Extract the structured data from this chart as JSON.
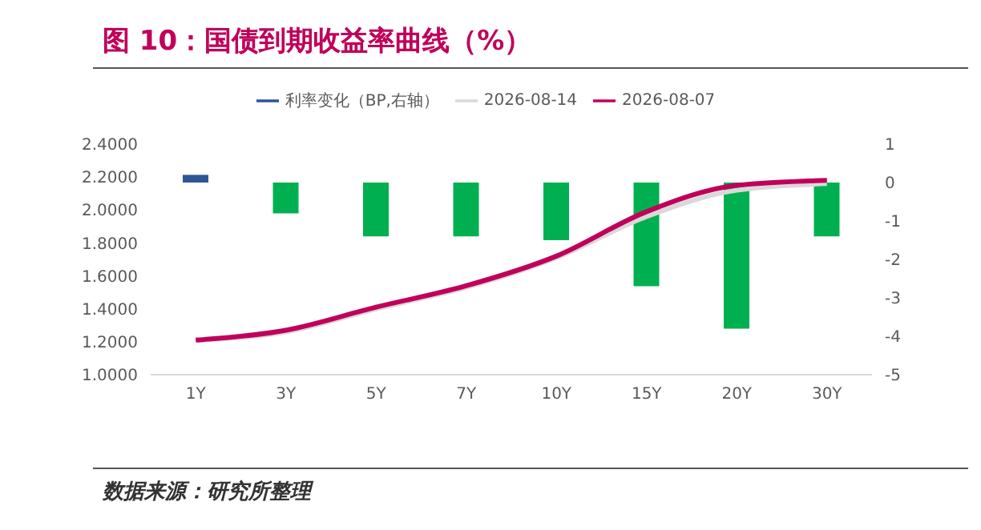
{
  "chart_data": {
    "type": "bar",
    "title": "图 10：国债到期收益率曲线（%）",
    "categories": [
      "1Y",
      "3Y",
      "5Y",
      "7Y",
      "10Y",
      "15Y",
      "20Y",
      "30Y"
    ],
    "series": [
      {
        "name": "利率变化（BP,右轴）",
        "axis": "y2",
        "color": "#2f5597",
        "colors": [
          "#2f5597",
          "#00b050",
          "#00b050",
          "#00b050",
          "#00b050",
          "#00b050",
          "#00b050",
          "#00b050"
        ],
        "values": [
          0.2,
          -0.8,
          -1.4,
          -1.4,
          -1.5,
          -2.7,
          -3.8,
          -1.4
        ]
      },
      {
        "name": "2026-08-14",
        "type": "line",
        "color": "#d9d9d9",
        "values": [
          1.21,
          1.26,
          1.4,
          1.53,
          1.71,
          1.96,
          2.12,
          2.16
        ]
      },
      {
        "name": "2026-08-07",
        "type": "line",
        "color": "#c0005a",
        "values": [
          1.21,
          1.27,
          1.41,
          1.54,
          1.72,
          1.99,
          2.15,
          2.18
        ]
      }
    ],
    "ylim": [
      1,
      2.4
    ],
    "yticks": [
      {
        "value": 1,
        "label": "1.0000"
      },
      {
        "value": 1.2,
        "label": "1.2000"
      },
      {
        "value": 1.4,
        "label": "1.4000"
      },
      {
        "value": 1.6,
        "label": "1.6000"
      },
      {
        "value": 1.8,
        "label": "1.8000"
      },
      {
        "value": 2,
        "label": "2.0000"
      },
      {
        "value": 2.2,
        "label": "2.2000"
      },
      {
        "value": 2.4,
        "label": "2.4000"
      }
    ],
    "y2lim": [
      -5,
      1
    ],
    "y2ticks": [
      1,
      0,
      -1,
      -2,
      -3,
      -4,
      -5
    ],
    "legend": "top",
    "grid": false,
    "marker": "none",
    "annotations": [
      "数据来源：研究所整理"
    ]
  }
}
